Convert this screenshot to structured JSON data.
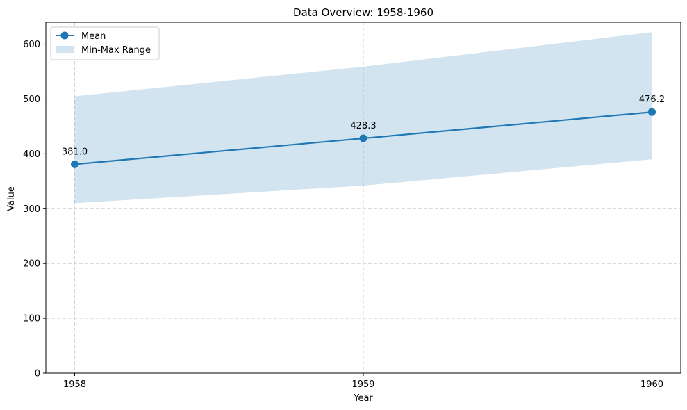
{
  "chart_data": {
    "type": "line",
    "title": "Data Overview: 1958-1960",
    "xlabel": "Year",
    "ylabel": "Value",
    "x": [
      "1958",
      "1959",
      "1960"
    ],
    "series": [
      {
        "name": "Mean",
        "values": [
          381.0,
          428.3,
          476.2
        ],
        "color": "#1f77b4"
      }
    ],
    "band": {
      "name": "Min-Max Range",
      "min": [
        310,
        342,
        390
      ],
      "max": [
        505,
        559,
        622
      ],
      "color": "#1f77b4",
      "opacity": 0.2
    },
    "data_labels": [
      "381.0",
      "428.3",
      "476.2"
    ],
    "yticks": [
      0,
      100,
      200,
      300,
      400,
      500,
      600
    ],
    "ylim": [
      0,
      640
    ],
    "grid": true,
    "legend_position": "top-left"
  }
}
